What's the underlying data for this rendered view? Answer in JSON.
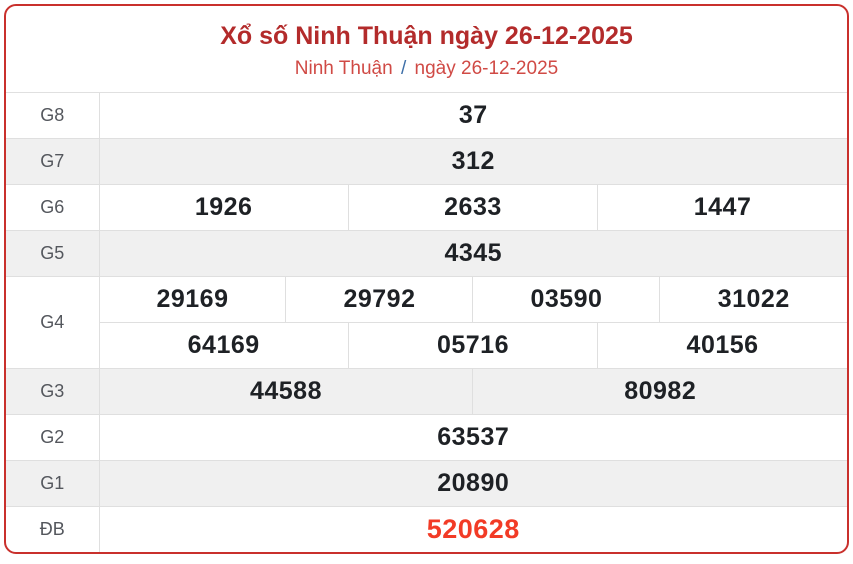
{
  "header": {
    "title": "Xổ số Ninh Thuận ngày 26-12-2025",
    "subtitle_station": "Ninh Thuận",
    "subtitle_separator": "/",
    "subtitle_date": "ngày 26-12-2025"
  },
  "colors": {
    "card_border_red": "#c9302c",
    "title_red": "#b32b2b",
    "subtitle_red": "#d04a45",
    "separator_blue": "#3e6fa8",
    "alt_row_bg": "#f0f0f0",
    "cell_divider": "#dfdfdf",
    "prize_label_gray": "#54575d",
    "number_dark": "#1e2125",
    "special_number_red": "#f23b26"
  },
  "table": {
    "rows": [
      {
        "label": "G8",
        "cells": [
          "37"
        ]
      },
      {
        "label": "G7",
        "cells": [
          "312"
        ]
      },
      {
        "label": "G6",
        "cells": [
          "1926",
          "2633",
          "1447"
        ]
      },
      {
        "label": "G5",
        "cells": [
          "4345"
        ]
      },
      {
        "label": "G4",
        "lines": [
          [
            "29169",
            "29792",
            "03590",
            "31022"
          ],
          [
            "64169",
            "05716",
            "40156"
          ]
        ]
      },
      {
        "label": "G3",
        "cells": [
          "44588",
          "80982"
        ]
      },
      {
        "label": "G2",
        "cells": [
          "63537"
        ]
      },
      {
        "label": "G1",
        "cells": [
          "20890"
        ]
      },
      {
        "label": "ĐB",
        "cells": [
          "520628"
        ],
        "special": true
      }
    ]
  }
}
